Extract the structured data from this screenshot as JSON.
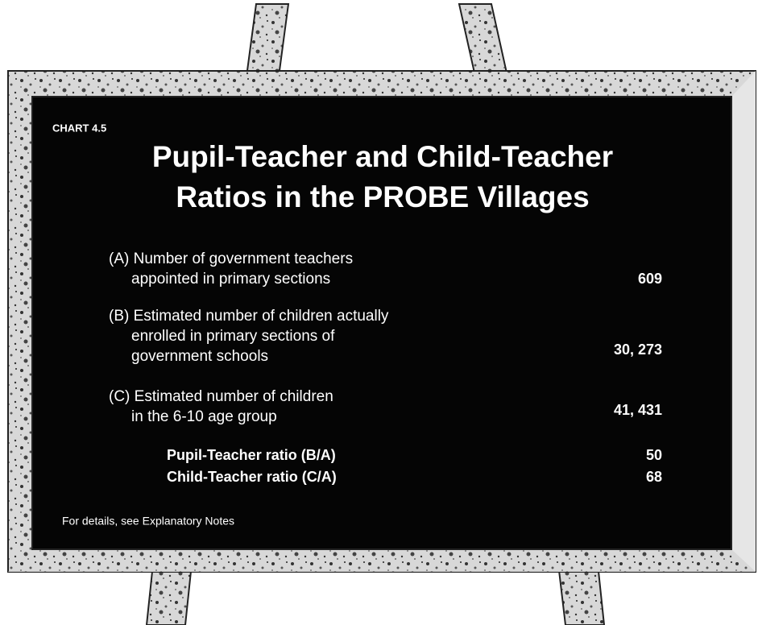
{
  "label": "CHART 4.5",
  "title": [
    "Pupil-Teacher and Child-Teacher",
    "Ratios in the PROBE Villages"
  ],
  "rows": [
    {
      "lines": [
        "(A) Number of government teachers",
        "appointed in primary sections"
      ],
      "value": "609"
    },
    {
      "lines": [
        "(B) Estimated number of children actually",
        "enrolled in primary sections of",
        "government schools"
      ],
      "value": "30, 273"
    },
    {
      "lines": [
        "(C) Estimated number of children",
        "in the 6-10 age group"
      ],
      "value": "41, 431"
    }
  ],
  "ratios": [
    {
      "label": "Pupil-Teacher ratio (B/A)",
      "value": "50"
    },
    {
      "label": "Child-Teacher ratio (C/A)",
      "value": "68"
    }
  ],
  "footnote": "For details, see Explanatory Notes"
}
